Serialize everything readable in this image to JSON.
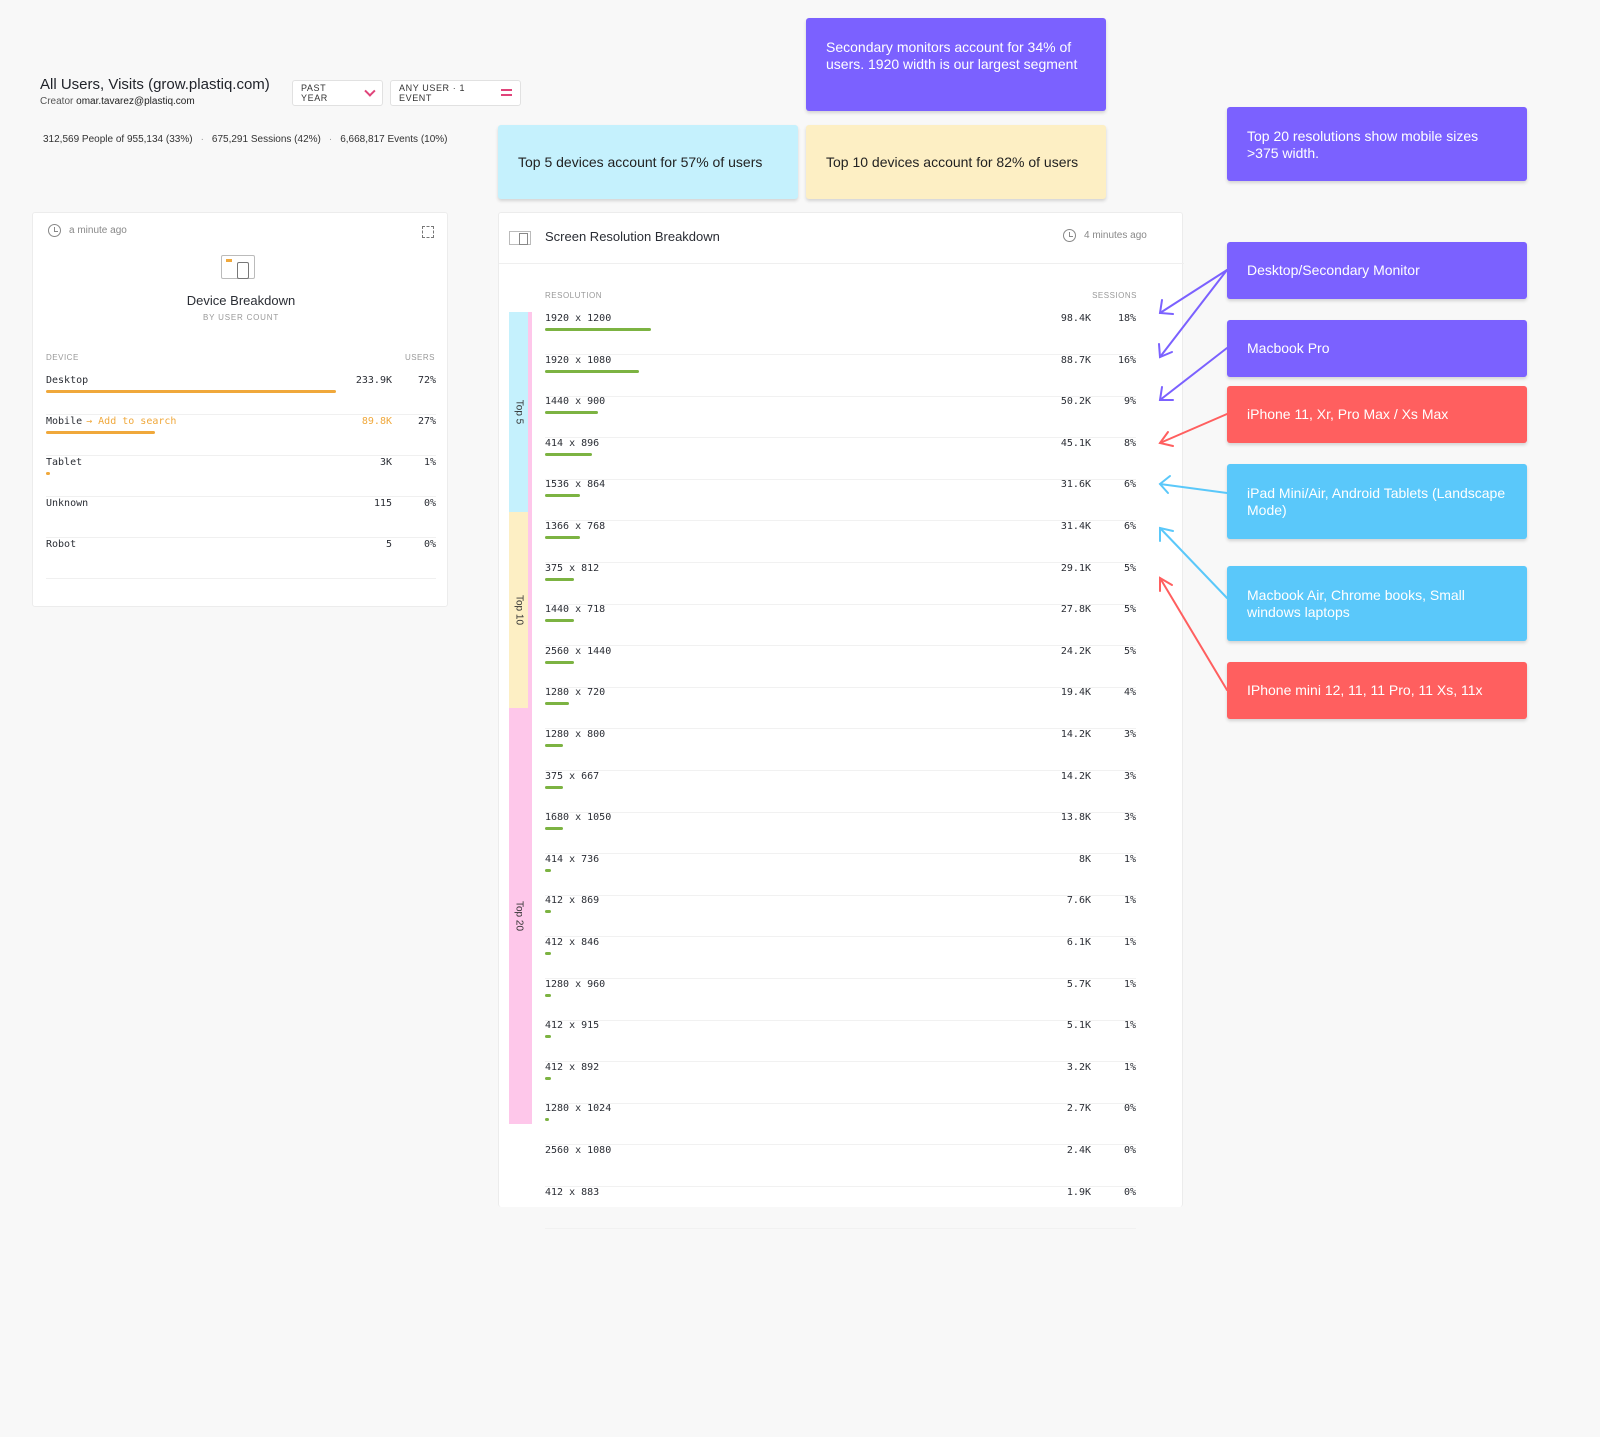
{
  "header": {
    "title": "All Users, Visits (grow.plastiq.com)",
    "creator_label": "Creator",
    "creator_email": "omar.tavarez@plastiq.com",
    "date_range": "PAST YEAR",
    "segment": "ANY USER · 1 EVENT"
  },
  "stats": {
    "people": "312,569 People of 955,134 (33%)",
    "sessions": "675,291 Sessions (42%)",
    "events": "6,668,817 Events (10%)"
  },
  "device_card": {
    "updated": "a minute ago",
    "title": "Device Breakdown",
    "subtitle": "BY USER COUNT",
    "col_device": "DEVICE",
    "col_users": "USERS",
    "rows": [
      {
        "name": "Desktop",
        "link": "",
        "value": "233.9K",
        "pct": "72%",
        "share": 72,
        "highlight": false
      },
      {
        "name": "Mobile",
        "link": "→ Add to search",
        "value": "89.8K",
        "pct": "27%",
        "share": 27,
        "highlight": true
      },
      {
        "name": "Tablet",
        "link": "",
        "value": "3K",
        "pct": "1%",
        "share": 1,
        "highlight": false
      },
      {
        "name": "Unknown",
        "link": "",
        "value": "115",
        "pct": "0%",
        "share": 0,
        "highlight": false
      },
      {
        "name": "Robot",
        "link": "",
        "value": "5",
        "pct": "0%",
        "share": 0,
        "highlight": false
      }
    ]
  },
  "resolution_card": {
    "title": "Screen Resolution Breakdown",
    "updated": "4 minutes ago",
    "col_resolution": "RESOLUTION",
    "col_sessions": "SESSIONS",
    "rows": [
      {
        "res": "1920 x 1200",
        "value": "98.4K",
        "pct": "18%",
        "share": 18
      },
      {
        "res": "1920 x 1080",
        "value": "88.7K",
        "pct": "16%",
        "share": 16
      },
      {
        "res": "1440 x 900",
        "value": "50.2K",
        "pct": "9%",
        "share": 9
      },
      {
        "res": "414 x 896",
        "value": "45.1K",
        "pct": "8%",
        "share": 8
      },
      {
        "res": "1536 x 864",
        "value": "31.6K",
        "pct": "6%",
        "share": 6
      },
      {
        "res": "1366 x 768",
        "value": "31.4K",
        "pct": "6%",
        "share": 6
      },
      {
        "res": "375 x 812",
        "value": "29.1K",
        "pct": "5%",
        "share": 5
      },
      {
        "res": "1440 x 718",
        "value": "27.8K",
        "pct": "5%",
        "share": 5
      },
      {
        "res": "2560 x 1440",
        "value": "24.2K",
        "pct": "5%",
        "share": 5
      },
      {
        "res": "1280 x 720",
        "value": "19.4K",
        "pct": "4%",
        "share": 4
      },
      {
        "res": "1280 x 800",
        "value": "14.2K",
        "pct": "3%",
        "share": 3
      },
      {
        "res": "375 x 667",
        "value": "14.2K",
        "pct": "3%",
        "share": 3
      },
      {
        "res": "1680 x 1050",
        "value": "13.8K",
        "pct": "3%",
        "share": 3
      },
      {
        "res": "414 x 736",
        "value": "8K",
        "pct": "1%",
        "share": 1
      },
      {
        "res": "412 x 869",
        "value": "7.6K",
        "pct": "1%",
        "share": 1
      },
      {
        "res": "412 x 846",
        "value": "6.1K",
        "pct": "1%",
        "share": 1
      },
      {
        "res": "1280 x 960",
        "value": "5.7K",
        "pct": "1%",
        "share": 1
      },
      {
        "res": "412 x 915",
        "value": "5.1K",
        "pct": "1%",
        "share": 1
      },
      {
        "res": "412 x 892",
        "value": "3.2K",
        "pct": "1%",
        "share": 1
      },
      {
        "res": "1280 x 1024",
        "value": "2.7K",
        "pct": "0%",
        "share": 0.5
      },
      {
        "res": "2560 x 1080",
        "value": "2.4K",
        "pct": "0%",
        "share": 0.4
      },
      {
        "res": "412 x 883",
        "value": "1.9K",
        "pct": "0%",
        "share": 0.3
      }
    ],
    "groups": [
      {
        "label": "Top 5",
        "color": "#c5f1fd"
      },
      {
        "label": "Top 10",
        "color": "#fdefc4"
      },
      {
        "label": "Top 20",
        "color": "#fec7ea"
      }
    ]
  },
  "notes": {
    "top5": "Top 5 devices account for 57% of users",
    "top10": "Top 10 devices account for 82% of users",
    "secondary": "Secondary monitors account for 34% of users. 1920 width is our largest segment",
    "top20": "Top 20 resolutions show mobile sizes >375 width.",
    "desktop": "Desktop/Secondary Monitor",
    "macbook_pro": "Macbook Pro",
    "iphone11": "iPhone 11, Xr, Pro Max / Xs Max",
    "ipad": "iPad Mini/Air, Android Tablets (Landscape Mode)",
    "macbook_air": "Macbook Air, Chrome books, Small windows laptops",
    "iphone_mini": "IPhone mini 12, 11, 11 Pro, 11 Xs, 11x"
  },
  "colors": {
    "purple": "#7b61ff",
    "red": "#ff5f5f",
    "blue": "#5ac8fa",
    "bar_green": "#7cb342",
    "bar_orange": "#f0a83b"
  }
}
